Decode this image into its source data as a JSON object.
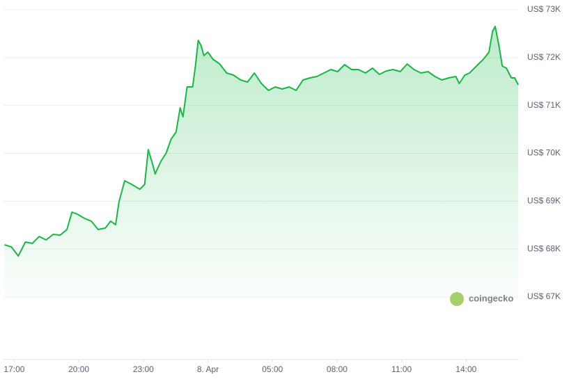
{
  "chart_data": {
    "type": "area",
    "watermark": "coingecko",
    "color": "#16b845",
    "grid": true,
    "xlim": [
      16.5,
      40.45
    ],
    "ylim": [
      67000,
      73000
    ],
    "yticks": [
      {
        "value": 67000,
        "label": "US$ 67K"
      },
      {
        "value": 68000,
        "label": "US$ 68K"
      },
      {
        "value": 69000,
        "label": "US$ 69K"
      },
      {
        "value": 70000,
        "label": "US$ 70K"
      },
      {
        "value": 71000,
        "label": "US$ 71K"
      },
      {
        "value": 72000,
        "label": "US$ 72K"
      },
      {
        "value": 73000,
        "label": "US$ 73K"
      }
    ],
    "xticks": [
      {
        "value": 17,
        "label": "17:00"
      },
      {
        "value": 20,
        "label": "20:00"
      },
      {
        "value": 23,
        "label": "23:00"
      },
      {
        "value": 26,
        "label": "8. Apr"
      },
      {
        "value": 29,
        "label": "05:00"
      },
      {
        "value": 32,
        "label": "08:00"
      },
      {
        "value": 35,
        "label": "11:00"
      },
      {
        "value": 38,
        "label": "14:00"
      }
    ],
    "x": [
      16.55,
      16.87,
      17.19,
      17.52,
      17.84,
      18.16,
      18.48,
      18.81,
      19.13,
      19.45,
      19.68,
      19.94,
      20.26,
      20.58,
      20.9,
      21.23,
      21.48,
      21.71,
      21.87,
      22.13,
      22.45,
      22.84,
      23.06,
      23.23,
      23.42,
      23.55,
      23.81,
      24.06,
      24.29,
      24.52,
      24.71,
      24.84,
      25.03,
      25.29,
      25.42,
      25.55,
      25.68,
      25.81,
      26.0,
      26.23,
      26.55,
      26.87,
      27.19,
      27.52,
      27.84,
      28.16,
      28.48,
      28.81,
      29.13,
      29.45,
      29.77,
      30.1,
      30.42,
      30.74,
      31.06,
      31.39,
      31.71,
      32.03,
      32.35,
      32.68,
      33.0,
      33.32,
      33.65,
      33.97,
      34.29,
      34.61,
      34.94,
      35.26,
      35.58,
      35.9,
      36.23,
      36.55,
      36.87,
      37.19,
      37.52,
      37.68,
      37.94,
      38.16,
      38.48,
      38.81,
      39.06,
      39.23,
      39.35,
      39.52,
      39.68,
      39.87,
      40.1,
      40.26,
      40.42
    ],
    "values": [
      68090,
      68045,
      67856,
      68147,
      68118,
      68263,
      68191,
      68307,
      68292,
      68409,
      68772,
      68728,
      68641,
      68583,
      68409,
      68438,
      68583,
      68510,
      68990,
      69426,
      69353,
      69251,
      69353,
      70079,
      69789,
      69571,
      69832,
      70007,
      70297,
      70443,
      70951,
      70762,
      71387,
      71387,
      71823,
      72361,
      72259,
      72041,
      72114,
      71968,
      71867,
      71678,
      71634,
      71532,
      71489,
      71678,
      71460,
      71315,
      71387,
      71344,
      71387,
      71315,
      71532,
      71576,
      71605,
      71678,
      71750,
      71707,
      71852,
      71750,
      71750,
      71678,
      71779,
      71649,
      71721,
      71750,
      71707,
      71867,
      71750,
      71678,
      71707,
      71605,
      71532,
      71576,
      71605,
      71460,
      71634,
      71678,
      71823,
      71968,
      72114,
      72550,
      72651,
      72259,
      71823,
      71779,
      71576,
      71576,
      71431
    ]
  }
}
